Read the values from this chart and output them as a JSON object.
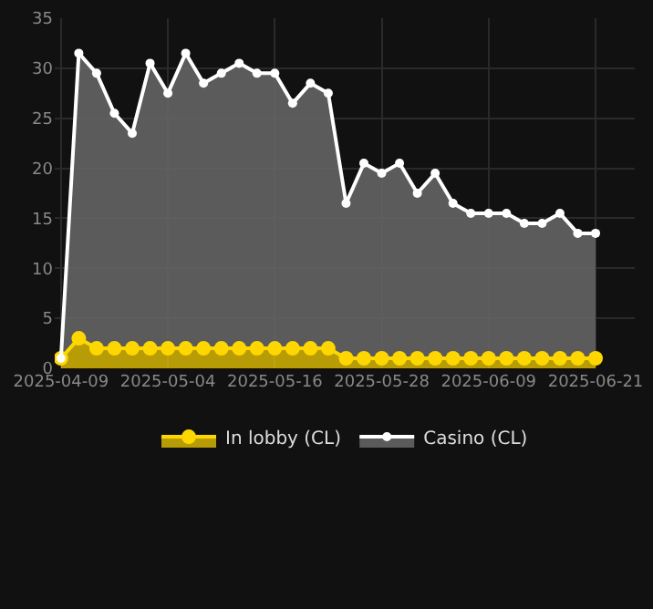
{
  "chart_data": {
    "type": "area",
    "categories": [
      "2025-04-09",
      null,
      null,
      null,
      null,
      null,
      "2025-05-04",
      null,
      null,
      null,
      null,
      null,
      "2025-05-16",
      null,
      null,
      null,
      null,
      null,
      "2025-05-28",
      null,
      null,
      null,
      null,
      null,
      "2025-06-09",
      null,
      null,
      null,
      null,
      null,
      "2025-06-21"
    ],
    "series": [
      {
        "name": "In lobby (CL)",
        "color": "#ffd700",
        "values": [
          1,
          3,
          2,
          2,
          2,
          2,
          2,
          2,
          2,
          2,
          2,
          2,
          2,
          2,
          2,
          2,
          1,
          1,
          1,
          1,
          1,
          1,
          1,
          1,
          1,
          1,
          1,
          1,
          1,
          1,
          1
        ]
      },
      {
        "name": "Casino (CL)",
        "color": "#ffffff",
        "values": [
          1,
          31.5,
          29.5,
          25.5,
          23.5,
          30.5,
          27.5,
          31.5,
          28.5,
          29.5,
          30.5,
          29.5,
          29.5,
          26.5,
          28.5,
          27.5,
          16.5,
          20.5,
          19.5,
          20.5,
          17.5,
          19.5,
          16.5,
          15.5,
          15.5,
          15.5,
          14.5,
          14.5,
          15.5,
          13.5,
          13.5
        ]
      }
    ],
    "ylim": [
      0,
      35
    ],
    "yticks": [
      0,
      5,
      10,
      15,
      20,
      25,
      30,
      35
    ],
    "grid": true,
    "legend": "bottom",
    "marker": "circle",
    "line_style": "solid"
  }
}
